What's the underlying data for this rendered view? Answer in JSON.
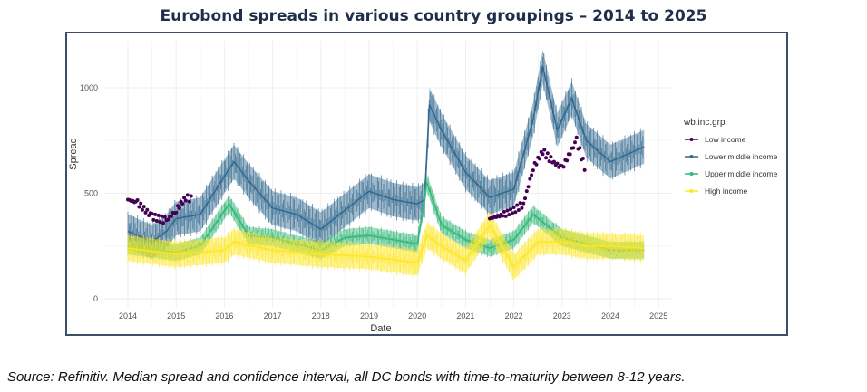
{
  "chart_data": {
    "type": "line",
    "title": "Eurobond spreads in various country groupings – 2014 to 2025",
    "xlabel": "Date",
    "ylabel": "Spread",
    "xlim": [
      2013.5,
      2025.2
    ],
    "ylim": [
      -50,
      1250
    ],
    "xticks": [
      "2014",
      "2015",
      "2016",
      "2017",
      "2018",
      "2019",
      "2020",
      "2021",
      "2022",
      "2023",
      "2024",
      "2025"
    ],
    "yticks": [
      "0",
      "500",
      "1000"
    ],
    "grid": true,
    "legend_title": "wb.inc.grp",
    "legend_position": "right",
    "series": [
      {
        "name": "Low income",
        "color": "#440154",
        "band": 0,
        "segments": [
          [
            [
              2014.0,
              470
            ],
            [
              2014.2,
              455
            ],
            [
              2014.5,
              390
            ],
            [
              2014.8,
              370
            ],
            [
              2015.0,
              420
            ],
            [
              2015.2,
              480
            ],
            [
              2015.35,
              470
            ]
          ],
          [
            [
              2021.5,
              380
            ],
            [
              2021.8,
              400
            ],
            [
              2022.0,
              420
            ],
            [
              2022.2,
              450
            ],
            [
              2022.4,
              620
            ],
            [
              2022.6,
              700
            ],
            [
              2022.8,
              650
            ],
            [
              2023.0,
              620
            ],
            [
              2023.3,
              750
            ],
            [
              2023.5,
              600
            ]
          ]
        ]
      },
      {
        "name": "Lower middle income",
        "color": "#31688e",
        "band": 80,
        "segments": [
          [
            [
              2014.0,
              320
            ],
            [
              2014.5,
              270
            ],
            [
              2014.8,
              320
            ],
            [
              2015.0,
              380
            ],
            [
              2015.5,
              400
            ],
            [
              2016.0,
              580
            ],
            [
              2016.2,
              650
            ],
            [
              2016.5,
              560
            ],
            [
              2017.0,
              430
            ],
            [
              2017.5,
              400
            ],
            [
              2018.0,
              330
            ],
            [
              2018.5,
              420
            ],
            [
              2019.0,
              510
            ],
            [
              2019.5,
              470
            ],
            [
              2020.0,
              450
            ],
            [
              2020.15,
              470
            ],
            [
              2020.25,
              920
            ],
            [
              2020.5,
              800
            ],
            [
              2021.0,
              600
            ],
            [
              2021.5,
              480
            ],
            [
              2022.0,
              520
            ],
            [
              2022.4,
              850
            ],
            [
              2022.6,
              1100
            ],
            [
              2022.9,
              800
            ],
            [
              2023.2,
              950
            ],
            [
              2023.5,
              750
            ],
            [
              2024.0,
              650
            ],
            [
              2024.5,
              700
            ],
            [
              2024.7,
              720
            ]
          ]
        ]
      },
      {
        "name": "Upper middle income",
        "color": "#35b779",
        "band": 40,
        "segments": [
          [
            [
              2014.0,
              250
            ],
            [
              2015.0,
              220
            ],
            [
              2015.5,
              250
            ],
            [
              2016.1,
              450
            ],
            [
              2016.5,
              300
            ],
            [
              2017.0,
              290
            ],
            [
              2018.0,
              230
            ],
            [
              2018.5,
              290
            ],
            [
              2019.0,
              300
            ],
            [
              2020.0,
              260
            ],
            [
              2020.2,
              550
            ],
            [
              2020.5,
              350
            ],
            [
              2021.0,
              280
            ],
            [
              2021.5,
              240
            ],
            [
              2022.0,
              280
            ],
            [
              2022.4,
              400
            ],
            [
              2023.0,
              290
            ],
            [
              2024.0,
              230
            ],
            [
              2024.7,
              230
            ]
          ]
        ]
      },
      {
        "name": "High income",
        "color": "#fde725",
        "band": 60,
        "segments": [
          [
            [
              2014.0,
              240
            ],
            [
              2015.0,
              210
            ],
            [
              2016.0,
              230
            ],
            [
              2016.2,
              270
            ],
            [
              2017.0,
              230
            ],
            [
              2018.0,
              210
            ],
            [
              2019.0,
              200
            ],
            [
              2020.0,
              170
            ],
            [
              2020.2,
              300
            ],
            [
              2020.5,
              250
            ],
            [
              2021.0,
              180
            ],
            [
              2021.5,
              350
            ],
            [
              2022.0,
              150
            ],
            [
              2022.5,
              270
            ],
            [
              2023.0,
              270
            ],
            [
              2023.5,
              250
            ],
            [
              2024.0,
              250
            ],
            [
              2024.7,
              240
            ]
          ]
        ]
      }
    ]
  },
  "source": "Source: Refinitiv. Median spread and confidence interval, all DC bonds with time-to-maturity between 8-12 years."
}
